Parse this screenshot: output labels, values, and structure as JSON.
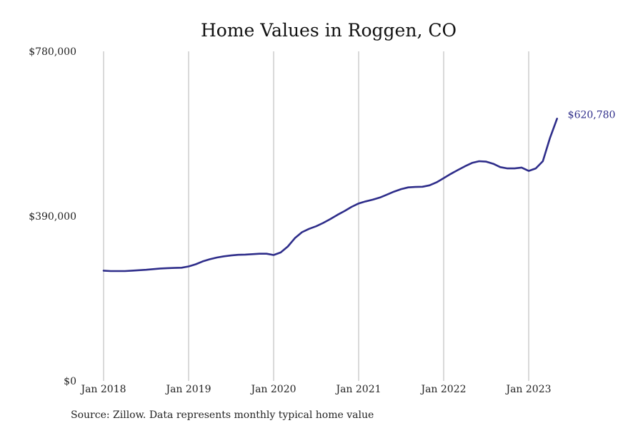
{
  "chart_data": {
    "type": "line",
    "title": "Home Values in Roggen, CO",
    "xlabel": "",
    "ylabel": "",
    "y_ticks": [
      {
        "value": 0,
        "label": "$0"
      },
      {
        "value": 390000,
        "label": "$390,000"
      },
      {
        "value": 780000,
        "label": "$780,000"
      }
    ],
    "ylim": [
      0,
      780000
    ],
    "x_ticks": [
      "Jan 2018",
      "Jan 2019",
      "Jan 2020",
      "Jan 2021",
      "Jan 2022",
      "Jan 2023"
    ],
    "xlim": [
      "2018-01",
      "2023-05"
    ],
    "grid": "vertical",
    "line_color": "#2e2d8a",
    "series": [
      {
        "name": "",
        "x": [
          "2018-01",
          "2018-02",
          "2018-03",
          "2018-04",
          "2018-05",
          "2018-06",
          "2018-07",
          "2018-08",
          "2018-09",
          "2018-10",
          "2018-11",
          "2018-12",
          "2019-01",
          "2019-02",
          "2019-03",
          "2019-04",
          "2019-05",
          "2019-06",
          "2019-07",
          "2019-08",
          "2019-09",
          "2019-10",
          "2019-11",
          "2019-12",
          "2020-01",
          "2020-02",
          "2020-03",
          "2020-04",
          "2020-05",
          "2020-06",
          "2020-07",
          "2020-08",
          "2020-09",
          "2020-10",
          "2020-11",
          "2020-12",
          "2021-01",
          "2021-02",
          "2021-03",
          "2021-04",
          "2021-05",
          "2021-06",
          "2021-07",
          "2021-08",
          "2021-09",
          "2021-10",
          "2021-11",
          "2021-12",
          "2022-01",
          "2022-02",
          "2022-03",
          "2022-04",
          "2022-05",
          "2022-06",
          "2022-07",
          "2022-08",
          "2022-09",
          "2022-10",
          "2022-11",
          "2022-12",
          "2023-01",
          "2023-02",
          "2023-03",
          "2023-04",
          "2023-05"
        ],
        "values": [
          261000,
          260000,
          260000,
          260000,
          261000,
          262000,
          263000,
          264500,
          266000,
          267000,
          267500,
          268000,
          271000,
          276000,
          283000,
          288000,
          292000,
          295000,
          297000,
          298500,
          299000,
          300000,
          301000,
          301000,
          298000,
          304000,
          318000,
          338000,
          352000,
          360000,
          366000,
          374000,
          383000,
          393000,
          402000,
          412000,
          420000,
          425000,
          429000,
          434000,
          441000,
          448000,
          454000,
          458000,
          459000,
          459500,
          463000,
          470000,
          480000,
          490000,
          499000,
          508000,
          516000,
          520000,
          519000,
          514000,
          506000,
          503000,
          503000,
          505000,
          497000,
          503000,
          520000,
          575000,
          620780
        ]
      }
    ],
    "end_label": "$620,780"
  },
  "footer": {
    "source": "Source: Zillow. Data represents monthly typical home value"
  }
}
